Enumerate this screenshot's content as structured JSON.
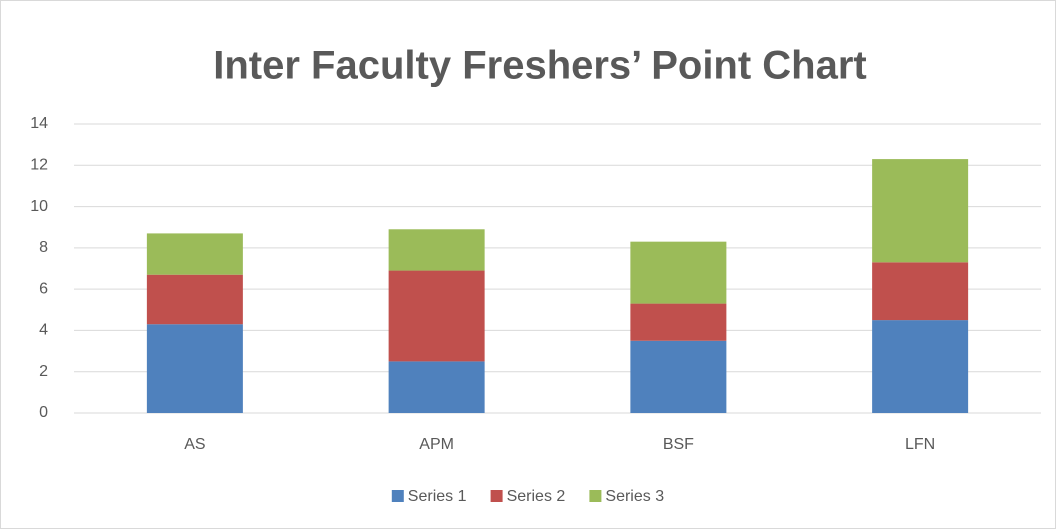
{
  "chart_data": {
    "type": "stacked_bar",
    "title": "Inter Faculty Freshers’ Point Chart",
    "categories": [
      "AS",
      "APM",
      "BSF",
      "LFN"
    ],
    "series": [
      {
        "name": "Series 1",
        "color": "#4f81bd",
        "values": [
          4.3,
          2.5,
          3.5,
          4.5
        ]
      },
      {
        "name": "Series 2",
        "color": "#c0504d",
        "values": [
          2.4,
          4.4,
          1.8,
          2.8
        ]
      },
      {
        "name": "Series 3",
        "color": "#9bbb59",
        "values": [
          2,
          2,
          3,
          5
        ]
      }
    ],
    "ylim": [
      0,
      14
    ],
    "yticks": [
      0,
      2,
      4,
      6,
      8,
      10,
      12,
      14
    ],
    "grid": true,
    "legend": "bottom"
  }
}
